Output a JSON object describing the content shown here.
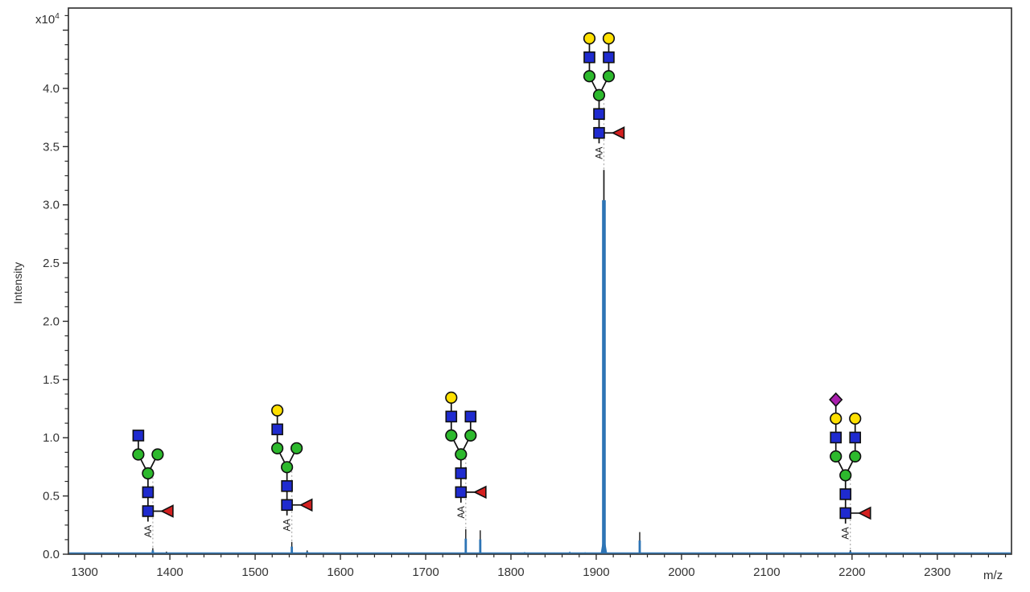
{
  "plot": {
    "ylabel": "Intensity",
    "xlabel": "m/z",
    "y_multiplier_base": "x10",
    "y_multiplier_exp": "4"
  },
  "chart_data": {
    "type": "line",
    "subtype": "mass-spectrum",
    "title": "",
    "xlabel": "m/z",
    "ylabel": "Intensity",
    "y_scale_label": "x10^4",
    "grid": false,
    "xlim": [
      1281,
      2387
    ],
    "ylim": [
      0,
      4.69
    ],
    "x_major_ticks": [
      1300,
      1400,
      1500,
      1600,
      1700,
      1800,
      1900,
      2000,
      2100,
      2200,
      2300
    ],
    "x_minor_step": 20,
    "y_major_ticks": [
      0.0,
      0.5,
      1.0,
      1.5,
      2.0,
      2.5,
      3.0,
      3.5,
      4.0,
      4.5
    ],
    "y_label_max": 4.0,
    "y_minor_step": 0.125,
    "line_color": "#2d74b5",
    "peak_tip_color": "#1a1a1a",
    "axis_color": "#2b2b2b",
    "tick_label_color": "#333333",
    "dotted_line_color": "#ababab",
    "peaks": [
      {
        "mz": 1380,
        "intensity": 0.052,
        "annotated": true
      },
      {
        "mz": 1396,
        "intensity": 0.022,
        "annotated": false
      },
      {
        "mz": 1543,
        "intensity": 0.105,
        "annotated": true
      },
      {
        "mz": 1561,
        "intensity": 0.032,
        "annotated": false
      },
      {
        "mz": 1747,
        "intensity": 0.215,
        "annotated": true
      },
      {
        "mz": 1764,
        "intensity": 0.205,
        "annotated": false
      },
      {
        "mz": 1909,
        "intensity": 3.3,
        "blue_intensity": 3.04,
        "annotated": true,
        "main": true
      },
      {
        "mz": 1951,
        "intensity": 0.19,
        "annotated": false
      },
      {
        "mz": 2198,
        "intensity": 0.035,
        "annotated": true
      }
    ],
    "noise_peaks": [
      [
        1290,
        0.008
      ],
      [
        1301,
        0.012
      ],
      [
        1313,
        0.006
      ],
      [
        1326,
        0.01
      ],
      [
        1338,
        0.014
      ],
      [
        1352,
        0.007
      ],
      [
        1365,
        0.009
      ],
      [
        1408,
        0.008
      ],
      [
        1422,
        0.012
      ],
      [
        1437,
        0.006
      ],
      [
        1452,
        0.009
      ],
      [
        1468,
        0.012
      ],
      [
        1483,
        0.007
      ],
      [
        1497,
        0.01
      ],
      [
        1512,
        0.008
      ],
      [
        1528,
        0.012
      ],
      [
        1576,
        0.014
      ],
      [
        1592,
        0.009
      ],
      [
        1610,
        0.012
      ],
      [
        1628,
        0.007
      ],
      [
        1645,
        0.01
      ],
      [
        1662,
        0.008
      ],
      [
        1678,
        0.012
      ],
      [
        1695,
        0.009
      ],
      [
        1712,
        0.014
      ],
      [
        1730,
        0.01
      ],
      [
        1782,
        0.009
      ],
      [
        1799,
        0.013
      ],
      [
        1816,
        0.018
      ],
      [
        1833,
        0.01
      ],
      [
        1851,
        0.014
      ],
      [
        1869,
        0.022
      ],
      [
        1887,
        0.016
      ],
      [
        1932,
        0.012
      ],
      [
        1966,
        0.009
      ],
      [
        1981,
        0.012
      ],
      [
        1997,
        0.008
      ],
      [
        2014,
        0.011
      ],
      [
        2031,
        0.007
      ],
      [
        2049,
        0.012
      ],
      [
        2066,
        0.009
      ],
      [
        2084,
        0.013
      ],
      [
        2101,
        0.008
      ],
      [
        2119,
        0.011
      ],
      [
        2137,
        0.007
      ],
      [
        2154,
        0.012
      ],
      [
        2172,
        0.009
      ],
      [
        2215,
        0.012
      ],
      [
        2233,
        0.008
      ],
      [
        2251,
        0.011
      ],
      [
        2269,
        0.007
      ],
      [
        2287,
        0.012
      ],
      [
        2305,
        0.008
      ],
      [
        2323,
        0.011
      ],
      [
        2341,
        0.007
      ],
      [
        2359,
        0.012
      ],
      [
        2375,
        0.008
      ]
    ],
    "symbol_colors": {
      "GlcNAc": "#1f2bcf",
      "Man": "#2db92d",
      "Gal": "#ffe000",
      "Fuc": "#d42020",
      "Neu5Ac": "#a91fad",
      "outline": "#101010"
    },
    "annotations": [
      {
        "mz": 1380,
        "label": "AA",
        "core_fucose": true,
        "left_antenna": [
          "Man",
          "GlcNAc"
        ],
        "right_antenna": [
          "Man"
        ]
      },
      {
        "mz": 1543,
        "label": "AA",
        "core_fucose": true,
        "left_antenna": [
          "Man",
          "GlcNAc",
          "Gal"
        ],
        "right_antenna": [
          "Man"
        ]
      },
      {
        "mz": 1747,
        "label": "AA",
        "core_fucose": true,
        "left_antenna": [
          "Man",
          "GlcNAc",
          "Gal"
        ],
        "right_antenna": [
          "Man",
          "GlcNAc"
        ]
      },
      {
        "mz": 1909,
        "label": "AA",
        "core_fucose": true,
        "left_antenna": [
          "Man",
          "GlcNAc",
          "Gal"
        ],
        "right_antenna": [
          "Man",
          "GlcNAc",
          "Gal"
        ]
      },
      {
        "mz": 2198,
        "label": "AA",
        "core_fucose": true,
        "left_antenna": [
          "Man",
          "GlcNAc",
          "Gal",
          "Neu5Ac"
        ],
        "right_antenna": [
          "Man",
          "GlcNAc",
          "Gal"
        ]
      }
    ]
  }
}
